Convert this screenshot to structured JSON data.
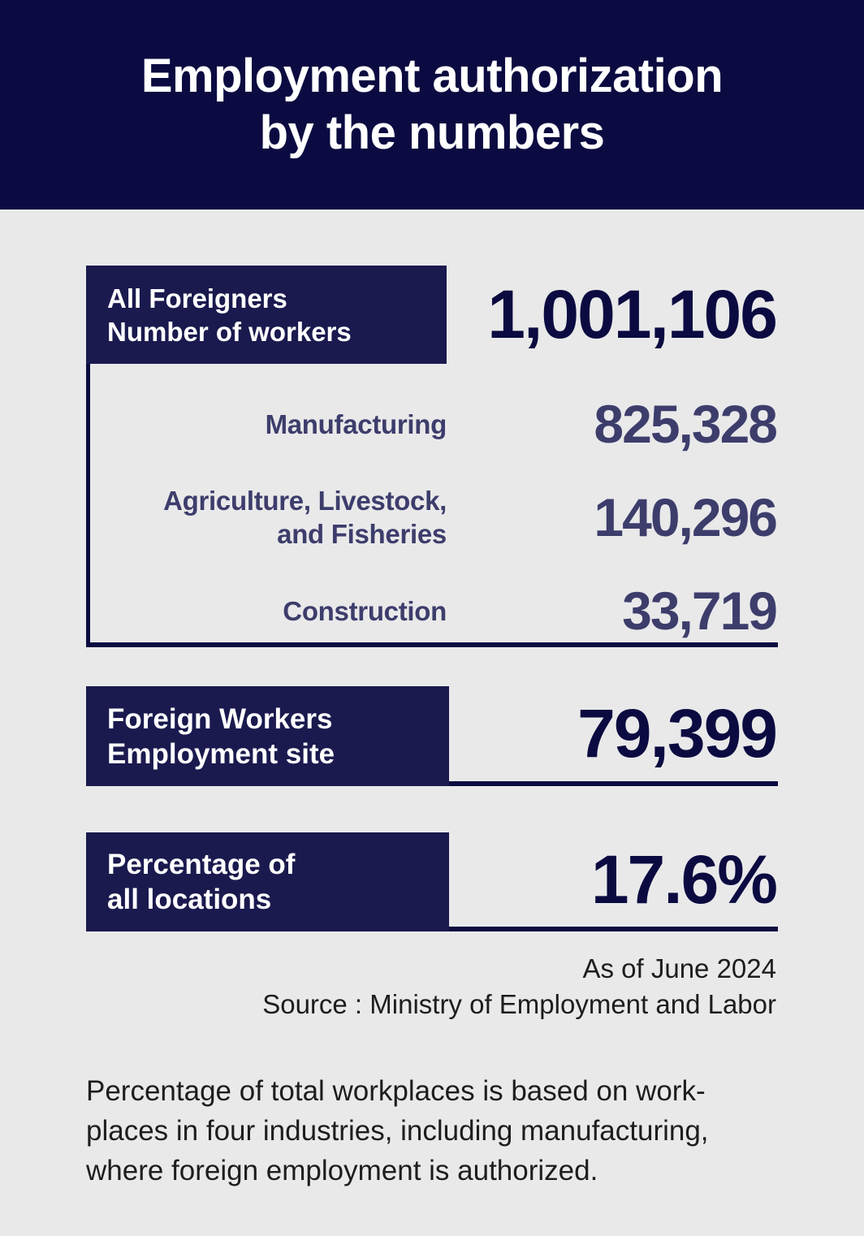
{
  "header": {
    "title": "Employment authorization\nby the numbers"
  },
  "stats": {
    "main": {
      "label": "All Foreigners\nNumber of workers",
      "value": "1,001,106",
      "breakdown": [
        {
          "label": "Manufacturing",
          "value": "825,328"
        },
        {
          "label": "Agriculture, Livestock,\nand Fisheries",
          "value": "140,296"
        },
        {
          "label": "Construction",
          "value": "33,719"
        }
      ]
    },
    "employment_site": {
      "label": "Foreign Workers\nEmployment site",
      "value": "79,399"
    },
    "percentage": {
      "label": "Percentage of\nall locations",
      "value": "17.6%"
    }
  },
  "meta": {
    "as_of": "As of June 2024",
    "source": "Source : Ministry of Employment and Labor"
  },
  "footnote": {
    "text": "Percentage of total workplaces is based on work-\nplaces in four industries, including manufacturing,\nwhere foreign employment is authorized."
  },
  "colors": {
    "navy": "#0b0b41",
    "box_navy": "#1a1a4f",
    "slate": "#3d3d6c",
    "background": "#e9e9ea",
    "text": "#1d1d1d",
    "white": "#ffffff"
  }
}
